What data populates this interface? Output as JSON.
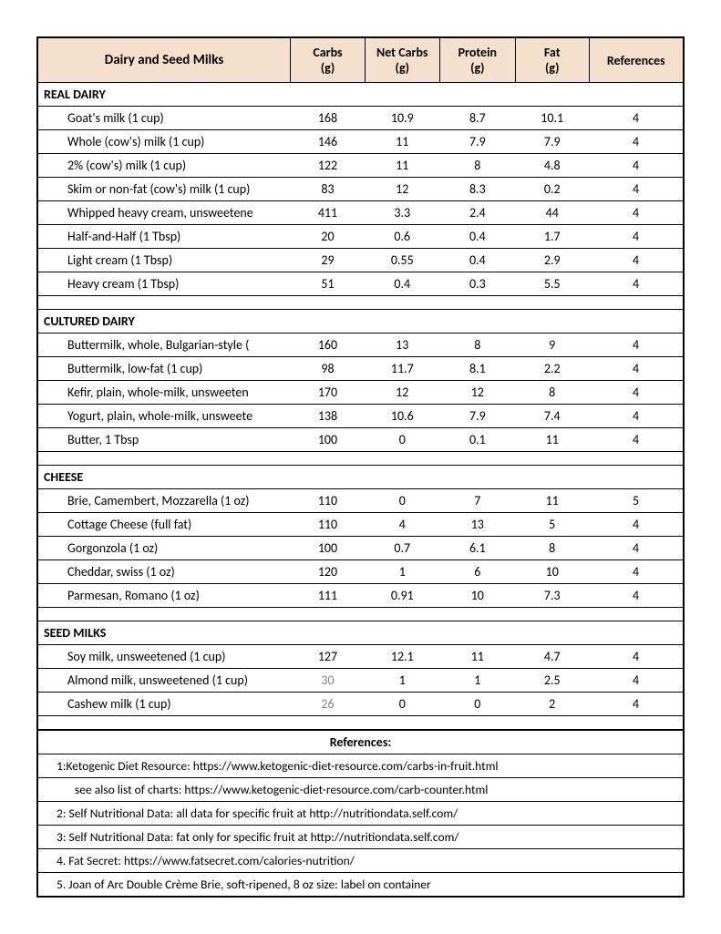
{
  "table": {
    "title": "Dairy and Seed Milks",
    "columns": [
      {
        "label": "Carbs",
        "unit": "(g)"
      },
      {
        "label": "Net Carbs",
        "unit": "(g)"
      },
      {
        "label": "Protein",
        "unit": "(g)"
      },
      {
        "label": "Fat",
        "unit": "(g)"
      },
      {
        "label": "References",
        "unit": ""
      }
    ],
    "sections": [
      {
        "name": "REAL DAIRY",
        "rows": [
          {
            "item": "Goat's milk (1 cup)",
            "carbs": "168",
            "net": "10.9",
            "protein": "8.7",
            "fat": "10.1",
            "ref": "4"
          },
          {
            "item": "Whole (cow's) milk (1 cup)",
            "carbs": "146",
            "net": "11",
            "protein": "7.9",
            "fat": "7.9",
            "ref": "4"
          },
          {
            "item": "2% (cow's) milk (1 cup)",
            "carbs": "122",
            "net": "11",
            "protein": "8",
            "fat": "4.8",
            "ref": "4"
          },
          {
            "item": "Skim or non-fat (cow's) milk (1 cup)",
            "carbs": "83",
            "net": "12",
            "protein": "8.3",
            "fat": "0.2",
            "ref": "4"
          },
          {
            "item": "Whipped heavy cream, unsweetene",
            "carbs": "411",
            "net": "3.3",
            "protein": "2.4",
            "fat": "44",
            "ref": "4"
          },
          {
            "item": "Half-and-Half (1 Tbsp)",
            "carbs": "20",
            "net": "0.6",
            "protein": "0.4",
            "fat": "1.7",
            "ref": "4"
          },
          {
            "item": "Light cream (1 Tbsp)",
            "carbs": "29",
            "net": "0.55",
            "protein": "0.4",
            "fat": "2.9",
            "ref": "4"
          },
          {
            "item": "Heavy cream (1 Tbsp)",
            "carbs": "51",
            "net": "0.4",
            "protein": "0.3",
            "fat": "5.5",
            "ref": "4"
          }
        ]
      },
      {
        "name": "CULTURED DAIRY",
        "rows": [
          {
            "item": "Buttermilk, whole, Bulgarian-style (",
            "carbs": "160",
            "net": "13",
            "protein": "8",
            "fat": "9",
            "ref": "4"
          },
          {
            "item": "Buttermilk, low-fat (1 cup)",
            "carbs": "98",
            "net": "11.7",
            "protein": "8.1",
            "fat": "2.2",
            "ref": "4"
          },
          {
            "item": "Kefir, plain, whole-milk, unsweeten",
            "carbs": "170",
            "net": "12",
            "protein": "12",
            "fat": "8",
            "ref": "4"
          },
          {
            "item": "Yogurt, plain, whole-milk, unsweete",
            "carbs": "138",
            "net": "10.6",
            "protein": "7.9",
            "fat": "7.4",
            "ref": "4"
          },
          {
            "item": "Butter, 1 Tbsp",
            "carbs": "100",
            "net": "0",
            "protein": "0.1",
            "fat": "11",
            "ref": "4"
          }
        ]
      },
      {
        "name": "CHEESE",
        "rows": [
          {
            "item": "Brie, Camembert, Mozzarella (1 oz)",
            "carbs": "110",
            "net": "0",
            "protein": "7",
            "fat": "11",
            "ref": "5"
          },
          {
            "item": "Cottage Cheese (full fat)",
            "carbs": "110",
            "net": "4",
            "protein": "13",
            "fat": "5",
            "ref": "4"
          },
          {
            "item": "Gorgonzola (1 oz)",
            "carbs": "100",
            "net": "0.7",
            "protein": "6.1",
            "fat": "8",
            "ref": "4"
          },
          {
            "item": "Cheddar, swiss (1 oz)",
            "carbs": "120",
            "net": "1",
            "protein": "6",
            "fat": "10",
            "ref": "4"
          },
          {
            "item": "Parmesan, Romano (1 oz)",
            "carbs": "111",
            "net": "0.91",
            "protein": "10",
            "fat": "7.3",
            "ref": "4"
          }
        ]
      },
      {
        "name": "SEED MILKS",
        "rows": [
          {
            "item": "Soy milk, unsweetened (1 cup)",
            "carbs": "127",
            "net": "12.1",
            "protein": "11",
            "fat": "4.7",
            "ref": "4"
          },
          {
            "item": "Almond milk, unsweetened (1 cup)",
            "carbs": "30",
            "carbs_gray": true,
            "net": "1",
            "protein": "1",
            "fat": "2.5",
            "ref": "4"
          },
          {
            "item": "Cashew milk (1 cup)",
            "carbs": "26",
            "carbs_gray": true,
            "net": "0",
            "protein": "0",
            "fat": "2",
            "ref": "4"
          }
        ]
      }
    ]
  },
  "references": {
    "title": "References:",
    "items": [
      {
        "text": "1:Ketogenic Diet Resource: https://www.ketogenic-diet-resource.com/carbs-in-fruit.html",
        "sub": false
      },
      {
        "text": "see also list of charts: https://www.ketogenic-diet-resource.com/carb-counter.html",
        "sub": true
      },
      {
        "text": "2: Self Nutritional Data: all data for specific fruit at http://nutritiondata.self.com/",
        "sub": false
      },
      {
        "text": "3: Self Nutritional Data: fat only for specific fruit at http://nutritiondata.self.com/",
        "sub": false
      },
      {
        "text": "4. Fat Secret: https://www.fatsecret.com/calories-nutrition/",
        "sub": false
      },
      {
        "text": "5. Joan of Arc Double Crème Brie, soft-ripened, 8 oz size: label on container",
        "sub": false
      }
    ]
  },
  "colors": {
    "header_bg": "#f4e0cc",
    "border": "#000000",
    "text": "#000000",
    "gray_text": "#888888",
    "bg": "#ffffff"
  }
}
